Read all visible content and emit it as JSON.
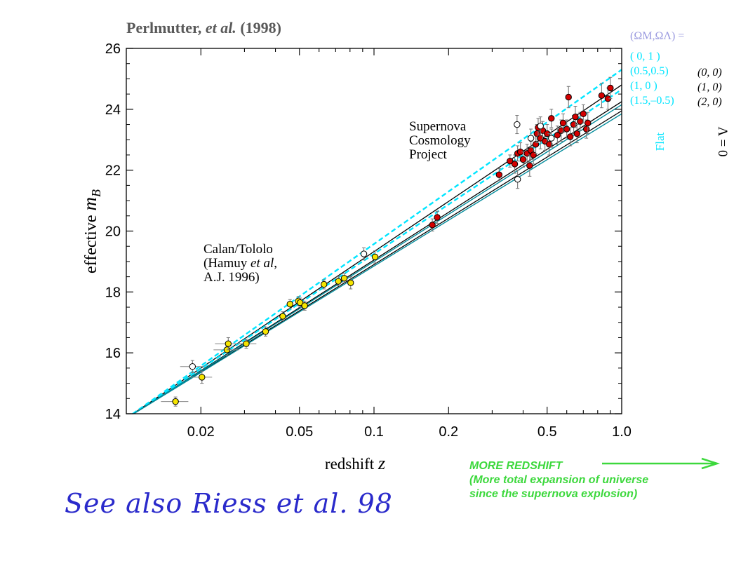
{
  "credit": {
    "author": "Perlmutter,",
    "etal": "et al.",
    "year": "(1998)"
  },
  "footnote": "See also Riess et al. 98",
  "more_redshift": {
    "line1": "MORE REDSHIFT",
    "line2": "(More total expansion of universe",
    "line3": "since the supernova explosion)"
  },
  "colors": {
    "axis": "#000000",
    "cosmology_line": "#000000",
    "flat_line": "#00e5ff",
    "flat_solid": "#008b9b",
    "scp_point": "#d40000",
    "calan_point": "#f5e400",
    "open_point": "#ffffff",
    "legend_header": "#9a9adf",
    "footnote": "#2a2acb",
    "more_redshift": "#3cd83c"
  },
  "chart_data": {
    "type": "scatter",
    "xscale": "log",
    "xlim": [
      0.01,
      1.0
    ],
    "ylim": [
      14,
      26
    ],
    "xlabel": "redshift",
    "xlabel_var": "z",
    "ylabel": "effective",
    "ylabel_var": "m",
    "ylabel_sub": "B",
    "xticks": [
      0.02,
      0.05,
      0.1,
      0.2,
      0.5,
      1.0
    ],
    "xtick_labels": [
      "0.02",
      "0.05",
      "0.1",
      "0.2",
      "0.5",
      "1.0"
    ],
    "yticks": [
      14,
      16,
      18,
      20,
      22,
      24,
      26
    ],
    "ytick_labels": [
      "14",
      "16",
      "18",
      "20",
      "22",
      "24",
      "26"
    ],
    "annotations": {
      "scp": [
        "Supernova",
        "Cosmology",
        "Project"
      ],
      "calan": [
        "Calan/Tololo",
        "(Hamuy et al,",
        "A.J. 1996)"
      ]
    },
    "legend": {
      "header": "(ΩM,ΩΛ) =",
      "flat_entries": [
        "( 0,   1 )",
        "(0.5,0.5)",
        "(1,    0 )",
        "(1.5,–0.5)"
      ],
      "flat_label": "Flat",
      "lambda0_entries": [
        "(0, 0)",
        "(1, 0)",
        "(2, 0)"
      ],
      "lambda0_label": "Λ = 0"
    },
    "models": {
      "flat": [
        {
          "name": "( 0,   1 )",
          "y_at_z1": 25.3
        },
        {
          "name": "(0.5,0.5)",
          "y_at_z1": 24.65
        },
        {
          "name": "(1,    0 )",
          "y_at_z1": 24.15
        },
        {
          "name": "(1.5,–0.5)",
          "y_at_z1": 23.85
        }
      ],
      "lambda0": [
        {
          "name": "(0, 0)",
          "y_at_z1": 24.8
        },
        {
          "name": "(1, 0)",
          "y_at_z1": 24.25
        },
        {
          "name": "(2, 0)",
          "y_at_z1": 23.95
        }
      ],
      "y_at_z_low": 13.85,
      "z_low": 0.01
    },
    "series": [
      {
        "name": "Calan/Tololo",
        "style": "yellow",
        "points": [
          {
            "x": 0.0158,
            "y": 14.4,
            "err": 0.15,
            "xerr": 0.002
          },
          {
            "x": 0.0202,
            "y": 15.2,
            "err": 0.2,
            "xerr": 0.002
          },
          {
            "x": 0.0255,
            "y": 16.1,
            "err": 0.2,
            "xerr": 0.003
          },
          {
            "x": 0.0258,
            "y": 16.3,
            "err": 0.2,
            "xerr": 0.003
          },
          {
            "x": 0.0305,
            "y": 16.3,
            "err": 0.15,
            "xerr": 0.003
          },
          {
            "x": 0.0365,
            "y": 16.7,
            "err": 0.15
          },
          {
            "x": 0.0428,
            "y": 17.2,
            "err": 0.15
          },
          {
            "x": 0.0458,
            "y": 17.6,
            "err": 0.15
          },
          {
            "x": 0.0495,
            "y": 17.7,
            "err": 0.15
          },
          {
            "x": 0.0503,
            "y": 17.65,
            "err": 0.15
          },
          {
            "x": 0.0525,
            "y": 17.55,
            "err": 0.15
          },
          {
            "x": 0.0628,
            "y": 18.25,
            "err": 0.15
          },
          {
            "x": 0.0718,
            "y": 18.35,
            "err": 0.15
          },
          {
            "x": 0.0758,
            "y": 18.45,
            "err": 0.15
          },
          {
            "x": 0.0805,
            "y": 18.3,
            "err": 0.2
          },
          {
            "x": 0.101,
            "y": 19.15,
            "err": 0.2
          }
        ]
      },
      {
        "name": "Supernova Cosmology Project",
        "style": "red",
        "points": [
          {
            "x": 0.172,
            "y": 20.2,
            "err": 0.2
          },
          {
            "x": 0.18,
            "y": 20.45,
            "err": 0.2
          },
          {
            "x": 0.32,
            "y": 21.85,
            "err": 0.2
          },
          {
            "x": 0.354,
            "y": 22.3,
            "err": 0.2
          },
          {
            "x": 0.37,
            "y": 22.2,
            "err": 0.3
          },
          {
            "x": 0.38,
            "y": 22.55,
            "err": 0.25
          },
          {
            "x": 0.39,
            "y": 22.6,
            "err": 0.3
          },
          {
            "x": 0.4,
            "y": 22.35,
            "err": 0.25
          },
          {
            "x": 0.415,
            "y": 22.55,
            "err": 0.3
          },
          {
            "x": 0.425,
            "y": 22.15,
            "err": 0.35
          },
          {
            "x": 0.43,
            "y": 22.65,
            "err": 0.3
          },
          {
            "x": 0.44,
            "y": 22.5,
            "err": 0.3
          },
          {
            "x": 0.45,
            "y": 22.85,
            "err": 0.3
          },
          {
            "x": 0.455,
            "y": 23.2,
            "err": 0.3
          },
          {
            "x": 0.46,
            "y": 23.4,
            "err": 0.3
          },
          {
            "x": 0.47,
            "y": 23.05,
            "err": 0.35
          },
          {
            "x": 0.48,
            "y": 23.3,
            "err": 0.3
          },
          {
            "x": 0.49,
            "y": 22.95,
            "err": 0.3
          },
          {
            "x": 0.5,
            "y": 23.2,
            "err": 0.3
          },
          {
            "x": 0.51,
            "y": 22.85,
            "err": 0.35
          },
          {
            "x": 0.52,
            "y": 23.7,
            "err": 0.3
          },
          {
            "x": 0.55,
            "y": 23.15,
            "err": 0.3
          },
          {
            "x": 0.57,
            "y": 23.3,
            "err": 0.35
          },
          {
            "x": 0.58,
            "y": 23.55,
            "err": 0.3
          },
          {
            "x": 0.6,
            "y": 23.35,
            "err": 0.3
          },
          {
            "x": 0.61,
            "y": 24.4,
            "err": 0.35
          },
          {
            "x": 0.62,
            "y": 23.1,
            "err": 0.3
          },
          {
            "x": 0.64,
            "y": 23.5,
            "err": 0.3
          },
          {
            "x": 0.65,
            "y": 23.75,
            "err": 0.35
          },
          {
            "x": 0.66,
            "y": 23.2,
            "err": 0.3
          },
          {
            "x": 0.68,
            "y": 23.6,
            "err": 0.3
          },
          {
            "x": 0.7,
            "y": 23.85,
            "err": 0.3
          },
          {
            "x": 0.72,
            "y": 23.35,
            "err": 0.3
          },
          {
            "x": 0.73,
            "y": 23.55,
            "err": 0.35
          },
          {
            "x": 0.83,
            "y": 24.45,
            "err": 0.4
          },
          {
            "x": 0.88,
            "y": 24.35,
            "err": 0.35
          },
          {
            "x": 0.9,
            "y": 24.7,
            "err": 0.35
          }
        ]
      },
      {
        "name": "open",
        "style": "open",
        "points": [
          {
            "x": 0.0185,
            "y": 15.55,
            "err": 0.2,
            "xerr": 0.002
          },
          {
            "x": 0.091,
            "y": 19.25,
            "err": 0.2
          },
          {
            "x": 0.378,
            "y": 23.5,
            "err": 0.3
          },
          {
            "x": 0.38,
            "y": 21.7,
            "err": 0.3
          },
          {
            "x": 0.43,
            "y": 23.05,
            "err": 0.3
          },
          {
            "x": 0.47,
            "y": 23.45,
            "err": 0.3
          },
          {
            "x": 0.52,
            "y": 23.05,
            "err": 0.3
          }
        ]
      }
    ]
  }
}
